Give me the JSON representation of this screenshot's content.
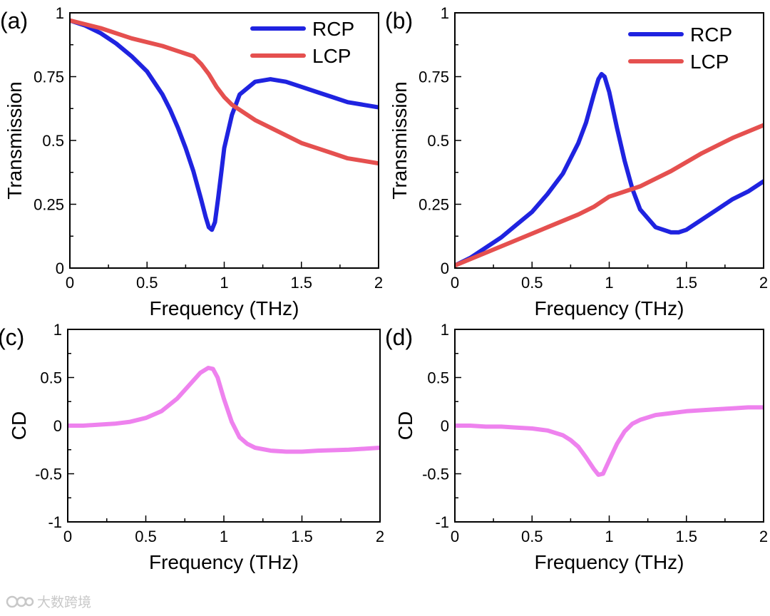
{
  "figure": {
    "accent_rcp": "#1f23e0",
    "accent_lcp": "#e5504f",
    "accent_cd": "#ee82ee"
  },
  "chart_data": [
    {
      "id": "a",
      "type": "line",
      "panel_label": "(a)",
      "xlabel": "Frequency (THz)",
      "ylabel": "Transmission",
      "xlim": [
        0,
        2
      ],
      "ylim": [
        0,
        1
      ],
      "xticks": [
        0,
        0.5,
        1,
        1.5,
        2
      ],
      "xtick_labels": [
        "0",
        "0.5",
        "1",
        "1.5",
        "2"
      ],
      "yticks": [
        0,
        0.25,
        0.5,
        0.75,
        1
      ],
      "ytick_labels": [
        "0",
        "0.25",
        "0.5",
        "0.75",
        "1"
      ],
      "legend": "top-right",
      "series": [
        {
          "name": "RCP",
          "color": "#1f23e0",
          "x": [
            0,
            0.1,
            0.2,
            0.3,
            0.4,
            0.5,
            0.6,
            0.65,
            0.7,
            0.75,
            0.8,
            0.85,
            0.88,
            0.9,
            0.92,
            0.94,
            0.96,
            0.98,
            1.0,
            1.05,
            1.1,
            1.2,
            1.3,
            1.4,
            1.5,
            1.6,
            1.7,
            1.8,
            1.9,
            2.0
          ],
          "y": [
            0.97,
            0.95,
            0.92,
            0.88,
            0.83,
            0.77,
            0.68,
            0.62,
            0.55,
            0.47,
            0.38,
            0.27,
            0.2,
            0.16,
            0.15,
            0.18,
            0.27,
            0.37,
            0.47,
            0.6,
            0.68,
            0.73,
            0.74,
            0.73,
            0.71,
            0.69,
            0.67,
            0.65,
            0.64,
            0.63
          ]
        },
        {
          "name": "LCP",
          "color": "#e5504f",
          "x": [
            0,
            0.2,
            0.4,
            0.6,
            0.7,
            0.8,
            0.85,
            0.9,
            0.95,
            1.0,
            1.05,
            1.1,
            1.2,
            1.3,
            1.4,
            1.5,
            1.6,
            1.7,
            1.8,
            1.9,
            2.0
          ],
          "y": [
            0.97,
            0.94,
            0.9,
            0.87,
            0.85,
            0.83,
            0.8,
            0.76,
            0.71,
            0.67,
            0.64,
            0.62,
            0.58,
            0.55,
            0.52,
            0.49,
            0.47,
            0.45,
            0.43,
            0.42,
            0.41
          ]
        }
      ]
    },
    {
      "id": "b",
      "type": "line",
      "panel_label": "(b)",
      "xlabel": "Frequency (THz)",
      "ylabel": "Transmission",
      "xlim": [
        0,
        2
      ],
      "ylim": [
        0,
        1
      ],
      "xticks": [
        0,
        0.5,
        1,
        1.5,
        2
      ],
      "xtick_labels": [
        "0",
        "0.5",
        "1",
        "1.5",
        "2"
      ],
      "yticks": [
        0,
        0.25,
        0.5,
        0.75,
        1
      ],
      "ytick_labels": [
        "0",
        "0.25",
        "0.5",
        "0.75",
        "1"
      ],
      "legend": "top-right",
      "series": [
        {
          "name": "RCP",
          "color": "#1f23e0",
          "x": [
            0,
            0.1,
            0.2,
            0.3,
            0.4,
            0.5,
            0.6,
            0.7,
            0.8,
            0.85,
            0.9,
            0.93,
            0.95,
            0.97,
            1.0,
            1.05,
            1.1,
            1.15,
            1.2,
            1.3,
            1.4,
            1.45,
            1.5,
            1.6,
            1.7,
            1.8,
            1.9,
            2.0
          ],
          "y": [
            0.01,
            0.04,
            0.08,
            0.12,
            0.17,
            0.22,
            0.29,
            0.37,
            0.49,
            0.57,
            0.68,
            0.74,
            0.76,
            0.75,
            0.69,
            0.55,
            0.42,
            0.31,
            0.23,
            0.16,
            0.14,
            0.14,
            0.15,
            0.19,
            0.23,
            0.27,
            0.3,
            0.34
          ]
        },
        {
          "name": "LCP",
          "color": "#e5504f",
          "x": [
            0,
            0.2,
            0.4,
            0.6,
            0.8,
            0.9,
            0.95,
            1.0,
            1.1,
            1.2,
            1.4,
            1.6,
            1.8,
            2.0
          ],
          "y": [
            0.01,
            0.06,
            0.11,
            0.16,
            0.21,
            0.24,
            0.26,
            0.28,
            0.3,
            0.32,
            0.38,
            0.45,
            0.51,
            0.56
          ]
        }
      ]
    },
    {
      "id": "c",
      "type": "line",
      "panel_label": "(c)",
      "xlabel": "Frequency (THz)",
      "ylabel": "CD",
      "xlim": [
        0,
        2
      ],
      "ylim": [
        -1,
        1
      ],
      "xticks": [
        0,
        0.5,
        1,
        1.5,
        2
      ],
      "xtick_labels": [
        "0",
        "0.5",
        "1",
        "1.5",
        "2"
      ],
      "yticks": [
        -1,
        -0.5,
        0,
        0.5,
        1
      ],
      "ytick_labels": [
        "-1",
        "-0.5",
        "0",
        "0.5",
        "1"
      ],
      "series": [
        {
          "name": "CD",
          "color": "#ee82ee",
          "x": [
            0,
            0.1,
            0.2,
            0.3,
            0.4,
            0.5,
            0.6,
            0.7,
            0.75,
            0.8,
            0.85,
            0.9,
            0.93,
            0.96,
            1.0,
            1.05,
            1.1,
            1.15,
            1.2,
            1.3,
            1.4,
            1.5,
            1.6,
            1.8,
            2.0
          ],
          "y": [
            0.0,
            0.0,
            0.01,
            0.02,
            0.04,
            0.08,
            0.15,
            0.28,
            0.37,
            0.46,
            0.55,
            0.6,
            0.59,
            0.5,
            0.28,
            0.04,
            -0.12,
            -0.19,
            -0.23,
            -0.26,
            -0.27,
            -0.27,
            -0.26,
            -0.25,
            -0.23
          ]
        }
      ]
    },
    {
      "id": "d",
      "type": "line",
      "panel_label": "(d)",
      "xlabel": "Frequency (THz)",
      "ylabel": "CD",
      "xlim": [
        0,
        2
      ],
      "ylim": [
        -1,
        1
      ],
      "xticks": [
        0,
        0.5,
        1,
        1.5,
        2
      ],
      "xtick_labels": [
        "0",
        "0.5",
        "1",
        "1.5",
        "2"
      ],
      "yticks": [
        -1,
        -0.5,
        0,
        0.5,
        1
      ],
      "ytick_labels": [
        "-1",
        "-0.5",
        "0",
        "0.5",
        "1"
      ],
      "series": [
        {
          "name": "CD",
          "color": "#ee82ee",
          "x": [
            0,
            0.1,
            0.2,
            0.3,
            0.4,
            0.5,
            0.6,
            0.7,
            0.75,
            0.8,
            0.85,
            0.9,
            0.93,
            0.96,
            1.0,
            1.05,
            1.1,
            1.15,
            1.2,
            1.3,
            1.4,
            1.5,
            1.6,
            1.7,
            1.8,
            1.9,
            2.0
          ],
          "y": [
            0.0,
            0.0,
            -0.01,
            -0.01,
            -0.02,
            -0.03,
            -0.05,
            -0.1,
            -0.15,
            -0.22,
            -0.33,
            -0.45,
            -0.51,
            -0.5,
            -0.36,
            -0.19,
            -0.06,
            0.02,
            0.06,
            0.11,
            0.13,
            0.15,
            0.16,
            0.17,
            0.18,
            0.19,
            0.19
          ]
        }
      ]
    }
  ],
  "watermark": {
    "text": "大数跨境",
    "icon": "watermark-logo-icon"
  }
}
